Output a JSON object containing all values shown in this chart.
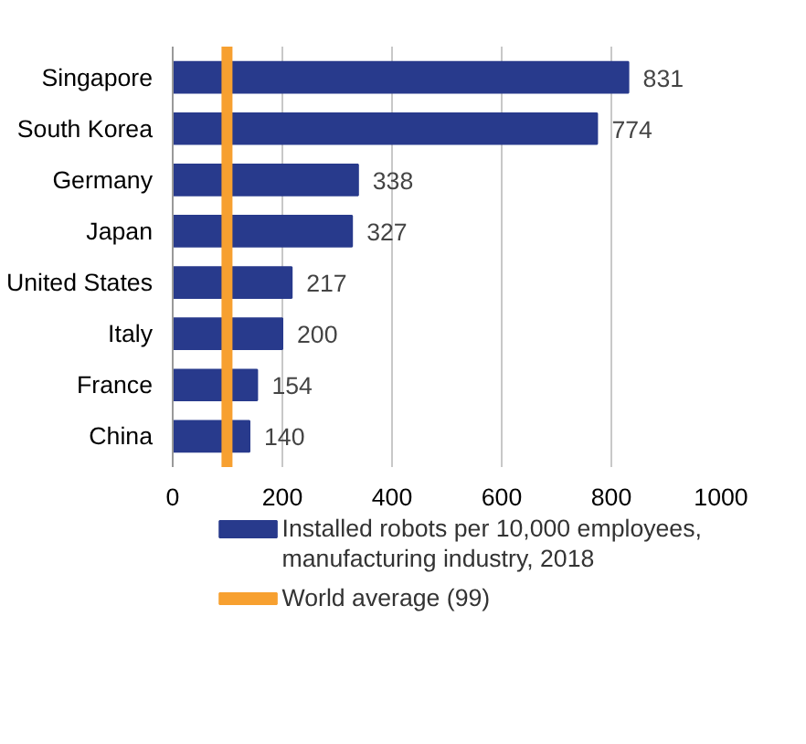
{
  "chart_data": {
    "type": "bar",
    "orientation": "horizontal",
    "categories": [
      "Singapore",
      "South Korea",
      "Germany",
      "Japan",
      "United States",
      "Italy",
      "France",
      "China"
    ],
    "series": [
      {
        "name": "Installed robots per 10,000 employees, manufacturing industry, 2018",
        "color": "#283a8c",
        "values": [
          831,
          774,
          338,
          327,
          217,
          200,
          154,
          140
        ]
      }
    ],
    "data_labels": true,
    "xlim": [
      0,
      1000
    ],
    "xticks": [
      0,
      200,
      400,
      600,
      800,
      1000
    ],
    "grid": "x",
    "legend": "bottom",
    "ref_lines": [
      {
        "axis": "x",
        "value": 99,
        "label": "World average (99)",
        "color": "#f7a030"
      }
    ]
  }
}
